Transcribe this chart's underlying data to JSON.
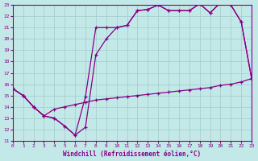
{
  "xlabel": "Windchill (Refroidissement éolien,°C)",
  "xlim": [
    0,
    23
  ],
  "ylim": [
    11,
    23
  ],
  "xticks": [
    0,
    1,
    2,
    3,
    4,
    5,
    6,
    7,
    8,
    9,
    10,
    11,
    12,
    13,
    14,
    15,
    16,
    17,
    18,
    19,
    20,
    21,
    22,
    23
  ],
  "yticks": [
    11,
    12,
    13,
    14,
    15,
    16,
    17,
    18,
    19,
    20,
    21,
    22,
    23
  ],
  "bg_color": "#c2e8e8",
  "line_color": "#880088",
  "grid_color": "#a0cccc",
  "line1_x": [
    0,
    1,
    2,
    3,
    4,
    5,
    6,
    7,
    8,
    9,
    10,
    11,
    12,
    13,
    14,
    15,
    16,
    17,
    18,
    19,
    20,
    21,
    22,
    23
  ],
  "line1_y": [
    15.6,
    15.0,
    14.0,
    13.2,
    13.0,
    12.3,
    11.5,
    12.2,
    18.6,
    20.0,
    21.0,
    21.2,
    22.5,
    22.6,
    23.0,
    22.5,
    22.5,
    22.5,
    23.1,
    22.3,
    23.2,
    23.0,
    21.5,
    16.5
  ],
  "line2_x": [
    0,
    1,
    2,
    3,
    4,
    5,
    6,
    7,
    8,
    9,
    10,
    11,
    12,
    13,
    14,
    15,
    16,
    17,
    18,
    19,
    20,
    21,
    22,
    23
  ],
  "line2_y": [
    15.6,
    15.0,
    14.0,
    13.2,
    13.0,
    12.3,
    11.5,
    14.9,
    21.0,
    21.0,
    21.0,
    21.2,
    22.5,
    22.6,
    23.0,
    22.5,
    22.5,
    22.5,
    23.1,
    22.3,
    23.2,
    23.0,
    21.5,
    16.5
  ],
  "line3_x": [
    0,
    1,
    2,
    3,
    4,
    5,
    6,
    7,
    8,
    9,
    10,
    11,
    12,
    13,
    14,
    15,
    16,
    17,
    18,
    19,
    20,
    21,
    22,
    23
  ],
  "line3_y": [
    15.6,
    15.0,
    14.0,
    13.2,
    13.8,
    14.0,
    14.2,
    14.4,
    14.6,
    14.7,
    14.8,
    14.9,
    15.0,
    15.1,
    15.2,
    15.3,
    15.4,
    15.5,
    15.6,
    15.7,
    15.9,
    16.0,
    16.2,
    16.5
  ]
}
